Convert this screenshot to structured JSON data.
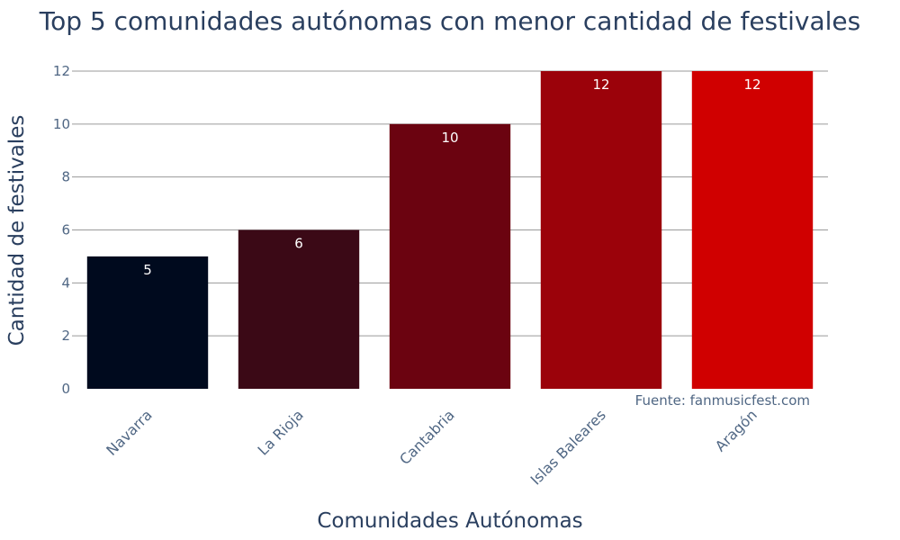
{
  "chart_data": {
    "type": "bar",
    "title": "Top 5 comunidades autónomas con menor cantidad de festivales",
    "xlabel": "Comunidades Autónomas",
    "ylabel": "Cantidad de festivales",
    "categories": [
      "Navarra",
      "La Rioja",
      "Cantabria",
      "Islas Baleares",
      "Aragón"
    ],
    "values": [
      5,
      6,
      10,
      12,
      12
    ],
    "colors": [
      "#000a1e",
      "#3b0916",
      "#6b0310",
      "#9b020a",
      "#d00000"
    ],
    "ylim": [
      0,
      12
    ],
    "yticks": [
      0,
      2,
      4,
      6,
      8,
      10,
      12
    ],
    "grid": true,
    "annotation": "Fuente: fanmusicfest.com"
  }
}
